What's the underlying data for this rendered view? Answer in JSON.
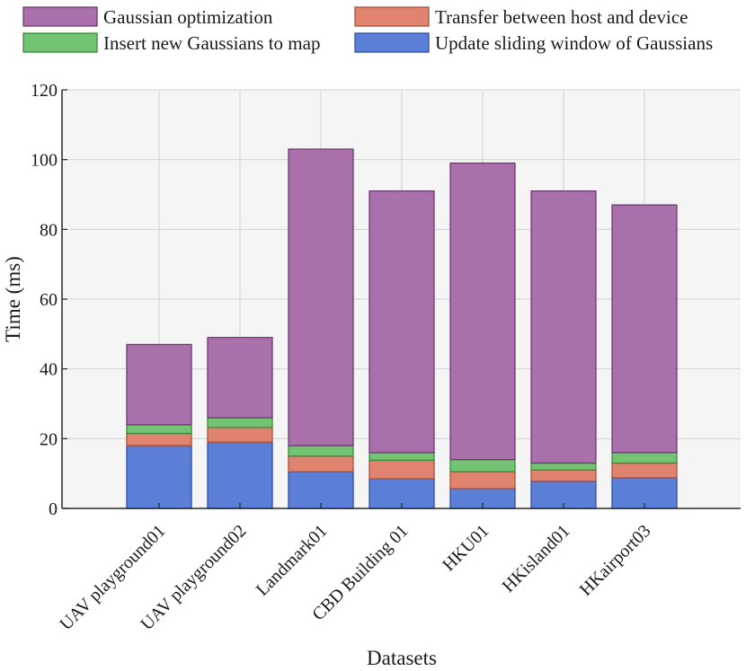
{
  "chart_data": {
    "type": "bar",
    "stacked": true,
    "title": "",
    "xlabel": "Datasets",
    "ylabel": "Time (ms)",
    "ylim": [
      0,
      120
    ],
    "yticks": [
      0,
      20,
      40,
      60,
      80,
      100,
      120
    ],
    "grid": true,
    "legend_position": "top",
    "categories": [
      "UAV playground01",
      "UAV playground02",
      "Landmark01",
      "CBD Building 01",
      "HKU01",
      "HKisland01",
      "HKairport03"
    ],
    "series": [
      {
        "name": "Update sliding window of Gaussians",
        "color": "#5b7fd6",
        "values": [
          18,
          19,
          10.5,
          8.5,
          5.7,
          7.8,
          8.8
        ]
      },
      {
        "name": "Transfer between host and device",
        "color": "#e08470",
        "values": [
          3.5,
          4.2,
          4.5,
          5.3,
          4.8,
          3.2,
          4.2
        ]
      },
      {
        "name": "Insert new Gaussians to map",
        "color": "#72c472",
        "values": [
          2.5,
          2.8,
          3,
          2.2,
          3.5,
          2,
          3
        ]
      },
      {
        "name": "Gaussian optimization",
        "color": "#aa70ac",
        "values": [
          23,
          23,
          85,
          75,
          85,
          78,
          71
        ]
      }
    ],
    "legend_order": [
      "Gaussian optimization",
      "Transfer between host and device",
      "Insert new Gaussians to map",
      "Update sliding window of Gaussians"
    ],
    "edge_colors": {
      "Update sliding window of Gaussians": "#2f4ea0",
      "Transfer between host and device": "#a8503e",
      "Insert new Gaussians to map": "#3b8a3b",
      "Gaussian optimization": "#6e3a70"
    }
  }
}
